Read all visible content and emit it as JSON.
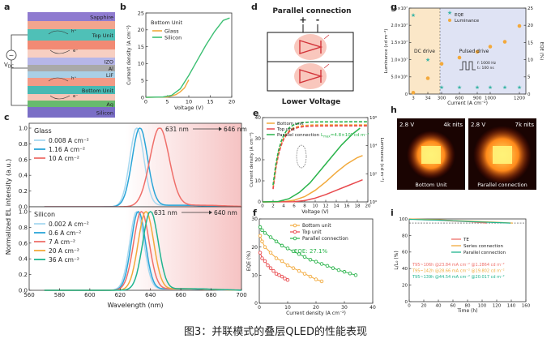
{
  "caption": "图3：并联模式的叠层QLED的性能表现",
  "colors": {
    "glass_orange": "#f2a93b",
    "silicon_green": "#3cbf73",
    "light_blue": "#a7d8f0",
    "mid_blue": "#2aa5d8",
    "salmon": "#ef6f6a",
    "teal": "#1fb48f",
    "red": "#e8494d",
    "orange": "#f2a93b",
    "dark_green": "#29b34a",
    "eqe_star": "#3bb5a6",
    "lum_dot": "#f3a93b"
  },
  "panel_letters": {
    "a": "a",
    "b": "b",
    "c": "c",
    "d": "d",
    "e": "e",
    "f": "f",
    "g": "g",
    "h": "h",
    "i": "i"
  },
  "panel_a": {
    "layers": [
      "Sapphire",
      "Top Unit",
      "IZO",
      "Al",
      "LiF",
      "Bottom Unit",
      "Ag",
      "Silicon"
    ],
    "source_label": "V",
    "source_sub": "DC",
    "h_plus": "h⁺",
    "e_minus": "e⁻"
  },
  "panel_b": {
    "legend_title": "Bottom Unit",
    "chart_data": {
      "type": "line",
      "xlabel": "Voltage (V)",
      "ylabel": "Current density (A cm⁻²)",
      "xlim": [
        0,
        20
      ],
      "ylim": [
        0,
        25
      ],
      "x_ticks": [
        "0",
        "5",
        "10",
        "15",
        "20"
      ],
      "y_ticks": [
        "0",
        "5",
        "10",
        "15",
        "20",
        "25"
      ],
      "series": [
        {
          "name": "Glass",
          "x": [
            0,
            5,
            7,
            8,
            9,
            9.5,
            10
          ],
          "y": [
            0,
            0.1,
            0.8,
            1.6,
            2.8,
            4.0,
            5.2
          ]
        },
        {
          "name": "Silicon",
          "x": [
            0,
            4,
            6,
            8,
            10,
            12,
            14,
            16,
            18,
            19.5
          ],
          "y": [
            0,
            0.1,
            0.6,
            2.5,
            6.5,
            11,
            15.5,
            19.5,
            22.8,
            23.5
          ]
        }
      ]
    }
  },
  "panel_c": {
    "chart_data": {
      "type": "line",
      "xlabel": "Wavelength (nm)",
      "ylabel": "Normalized EL intensity (a.u.)",
      "xlim": [
        560,
        700
      ],
      "x_ticks": [
        "560",
        "580",
        "600",
        "620",
        "640",
        "660",
        "680",
        "700"
      ],
      "y_ticks": [
        "0.0",
        "0.2",
        "0.4",
        "0.6",
        "0.8",
        "1.0"
      ],
      "top": {
        "title": "Glass",
        "annotation_left": "631 nm",
        "annotation_right": "646 nm",
        "series": [
          {
            "name": "0.008 A cm⁻²",
            "peak": 631,
            "width": 11
          },
          {
            "name": "1.16 A cm⁻²",
            "peak": 633,
            "width": 12
          },
          {
            "name": "10 A cm⁻²",
            "peak": 646,
            "width": 15
          }
        ]
      },
      "bottom": {
        "title": "Silicon",
        "annotation_left": "631 nm",
        "annotation_right": "640 nm",
        "series": [
          {
            "name": "0.002 A cm⁻²",
            "peak": 631,
            "width": 11
          },
          {
            "name": "0.6 A cm⁻²",
            "peak": 632,
            "width": 11
          },
          {
            "name": "7 A cm⁻²",
            "peak": 634,
            "width": 12
          },
          {
            "name": "20 A cm⁻²",
            "peak": 637,
            "width": 12
          },
          {
            "name": "36 A cm⁻²",
            "peak": 640,
            "width": 12
          }
        ]
      }
    }
  },
  "panel_d": {
    "title": "Parallel connection",
    "plus": "+",
    "minus": "-",
    "subtitle": "Lower Voltage"
  },
  "panel_e": {
    "annotation": "L",
    "annotation_sub": "max",
    "annotation_value": "=4.8×10⁵ cd m⁻²",
    "chart_data": {
      "type": "line",
      "xlabel": "Voltage (V)",
      "ylabel": "Current density (A cm⁻²)",
      "ylabel_right": "Luminance (cd m⁻²)",
      "xlim": [
        0,
        20
      ],
      "ylim": [
        0,
        40
      ],
      "x_ticks": [
        "0",
        "2",
        "4",
        "6",
        "8",
        "10",
        "12",
        "14",
        "16",
        "18",
        "20"
      ],
      "y_ticks": [
        "0",
        "10",
        "20",
        "30",
        "40"
      ],
      "y2_ticks": [
        "10⁰",
        "10²",
        "10⁴",
        "10⁶"
      ],
      "series": [
        {
          "name": "Bottom unit",
          "x": [
            0,
            4,
            6,
            8,
            10,
            12,
            14,
            16,
            18,
            19
          ],
          "y": [
            0,
            0.1,
            0.8,
            2.5,
            5.5,
            9.5,
            14,
            18,
            21,
            22
          ]
        },
        {
          "name": "Top unit",
          "x": [
            0,
            6,
            8,
            10,
            12,
            14,
            16,
            18,
            19
          ],
          "y": [
            0,
            0.1,
            0.6,
            1.8,
            3.5,
            5.5,
            7.5,
            9.5,
            10.5
          ]
        },
        {
          "name": "Parallel connection",
          "x": [
            0,
            3,
            5,
            7,
            9,
            11,
            13,
            15,
            17,
            18.5
          ],
          "y": [
            0,
            0.2,
            1.5,
            4.5,
            9,
            15,
            21,
            27,
            32,
            35
          ]
        }
      ]
    }
  },
  "panel_f": {
    "eqe_label": "EQE: 27.1%",
    "chart_data": {
      "type": "scatter",
      "xlabel": "Current density (A cm⁻²)",
      "ylabel": "EQE (%)",
      "xlim": [
        0,
        40
      ],
      "ylim": [
        0,
        30
      ],
      "x_ticks": [
        "0",
        "10",
        "20",
        "30",
        "40"
      ],
      "y_ticks": [
        "0",
        "10",
        "20",
        "30"
      ],
      "series": [
        {
          "name": "Bottom unit",
          "x": [
            0.3,
            1,
            2,
            4,
            6,
            8,
            10,
            12,
            14,
            16,
            18,
            20,
            22
          ],
          "y": [
            24,
            22,
            20,
            18,
            16,
            15,
            13.5,
            12.5,
            11.5,
            10.5,
            9.5,
            8.5,
            7.8
          ]
        },
        {
          "name": "Top unit",
          "x": [
            0.3,
            1,
            2,
            3,
            4,
            5,
            6,
            7,
            8,
            9,
            10
          ],
          "y": [
            18,
            16,
            15,
            13.5,
            12.5,
            11.5,
            10.5,
            10,
            9.5,
            8.8,
            8.3
          ]
        },
        {
          "name": "Parallel connection",
          "x": [
            0.3,
            1,
            2,
            4,
            6,
            8,
            10,
            12,
            14,
            16,
            18,
            20,
            22,
            24,
            26,
            28,
            30,
            32,
            34
          ],
          "y": [
            27.1,
            26,
            25,
            23.5,
            22,
            20.5,
            19.5,
            18.5,
            17.5,
            16.5,
            15.5,
            14.8,
            14,
            13.3,
            12.5,
            11.8,
            11.2,
            10.6,
            10
          ]
        }
      ]
    }
  },
  "panel_g": {
    "dc_label": "DC drive",
    "pulsed_label": "Pulsed drive",
    "pulse_f": "f: 1000 Hz",
    "pulse_t": "tᵢ: 100 ns",
    "chart_data": {
      "type": "scatter",
      "xlabel": "Current (A cm⁻²)",
      "ylabel": "Luminance (cd m⁻²)",
      "ylabel_right": "EQE (%)",
      "x_ticks": [
        "3",
        "34",
        "300",
        "600",
        "900",
        "1000",
        "1200"
      ],
      "y_ticks": [
        "0",
        "5.0×10⁶",
        "1.0×10⁷",
        "1.5×10⁷",
        "2.0×10⁷",
        "2.5×10⁷"
      ],
      "y2_ticks": [
        "0",
        "5",
        "10",
        "15",
        "20",
        "25"
      ],
      "series": [
        {
          "name": "EQE",
          "x": [
            3,
            34,
            300,
            600,
            900,
            1000,
            1100,
            1200
          ],
          "y": [
            23,
            10,
            2,
            2,
            2,
            2,
            2,
            2
          ]
        },
        {
          "name": "Luminance",
          "x": [
            3,
            34,
            300,
            600,
            900,
            1000,
            1100,
            1200
          ],
          "y": [
            400000.0,
            4600000.0,
            8800000.0,
            10600000.0,
            12300000.0,
            13800000.0,
            15200000.0,
            19800000.0
          ]
        }
      ]
    }
  },
  "panel_h": {
    "left_v": "2.8 V",
    "left_nits": "4k nits",
    "left_caption": "Bottom Unit",
    "right_v": "2.8 V",
    "right_nits": "7k nits",
    "right_caption": "Parallel connection"
  },
  "panel_i": {
    "t95": [
      "T95~106h  @23.84 mA cm⁻²  @1.2864 cd m⁻²",
      "T95~142h  @28.66 mA cm⁻²  @19.802 cd m⁻²",
      "T95~139h  @44.54 mA cm⁻²  @20.017 cd m⁻²"
    ],
    "chart_data": {
      "type": "line",
      "xlabel": "Time (h)",
      "ylabel": "L/L₀ (%)",
      "xlim": [
        0,
        160
      ],
      "ylim": [
        0,
        100
      ],
      "x_ticks": [
        "0",
        "20",
        "40",
        "60",
        "80",
        "100",
        "120",
        "140",
        "160"
      ],
      "y_ticks": [
        "0",
        "20",
        "40",
        "60",
        "80",
        "100"
      ],
      "series": [
        {
          "name": "TE",
          "x": [
            0,
            20,
            40,
            60,
            80,
            100,
            106
          ],
          "y": [
            100,
            99,
            98.5,
            97.5,
            96.8,
            95.5,
            95
          ]
        },
        {
          "name": "Series connection",
          "x": [
            0,
            20,
            40,
            60,
            80,
            100,
            120,
            142
          ],
          "y": [
            100,
            99.5,
            99,
            98,
            97.5,
            96.8,
            96,
            95
          ]
        },
        {
          "name": "Parallel connection",
          "x": [
            0,
            20,
            40,
            60,
            80,
            100,
            120,
            139
          ],
          "y": [
            99.5,
            99,
            98.5,
            97.8,
            97,
            96.3,
            95.6,
            95
          ]
        }
      ]
    }
  }
}
